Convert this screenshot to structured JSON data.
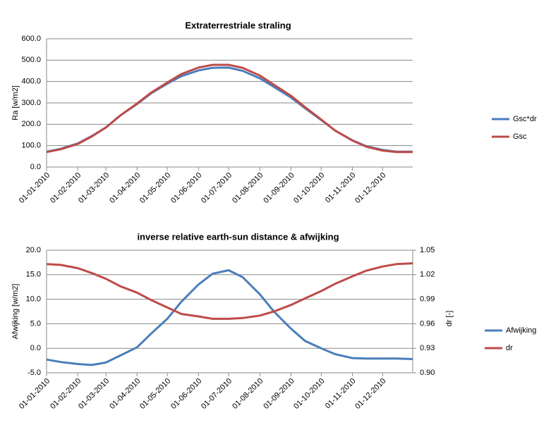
{
  "chart_data": [
    {
      "type": "line",
      "title": "Extraterrestriale straling",
      "ylabel": "Ra [w/m2]",
      "x": [
        "01-01-2010",
        "15-01-2010",
        "01-02-2010",
        "15-02-2010",
        "01-03-2010",
        "15-03-2010",
        "01-04-2010",
        "15-04-2010",
        "01-05-2010",
        "15-05-2010",
        "01-06-2010",
        "15-06-2010",
        "01-07-2010",
        "15-07-2010",
        "01-08-2010",
        "15-08-2010",
        "01-09-2010",
        "15-09-2010",
        "01-10-2010",
        "15-10-2010",
        "01-11-2010",
        "15-11-2010",
        "01-12-2010",
        "15-12-2010",
        "31-12-2010"
      ],
      "xlim": [
        "01-01-2010",
        "31-12-2010"
      ],
      "xticks": [
        "01-01-2010",
        "01-02-2010",
        "01-03-2010",
        "01-04-2010",
        "01-05-2010",
        "01-06-2010",
        "01-07-2010",
        "01-08-2010",
        "01-09-2010",
        "01-10-2010",
        "01-11-2010",
        "01-12-2010"
      ],
      "ylim": [
        0,
        600
      ],
      "yticks": [
        {
          "value": 0,
          "label": "0.0"
        },
        {
          "value": 100,
          "label": "100.0"
        },
        {
          "value": 200,
          "label": "200.0"
        },
        {
          "value": 300,
          "label": "300.0"
        },
        {
          "value": 400,
          "label": "400.0"
        },
        {
          "value": 500,
          "label": "500.0"
        },
        {
          "value": 600,
          "label": "600.0"
        }
      ],
      "grid": true,
      "legend": "right",
      "series": [
        {
          "name": "Gsc*dr",
          "color": "#4a7ebb",
          "values": [
            72,
            85,
            110,
            145,
            185,
            240,
            295,
            345,
            390,
            425,
            452,
            464,
            465,
            450,
            415,
            375,
            325,
            275,
            220,
            170,
            125,
            97,
            80,
            72,
            72
          ]
        },
        {
          "name": "Gsc",
          "color": "#be4b48",
          "values": [
            70,
            83,
            108,
            143,
            185,
            240,
            297,
            348,
            395,
            435,
            465,
            478,
            478,
            464,
            428,
            385,
            333,
            280,
            222,
            170,
            124,
            95,
            77,
            70,
            70
          ]
        }
      ]
    },
    {
      "type": "line",
      "title": "inverse relative earth-sun distance & afwijking",
      "ylabel": "Afwijking [w/m2]",
      "y2label": "dr [-]",
      "x": [
        "01-01-2010",
        "15-01-2010",
        "01-02-2010",
        "15-02-2010",
        "01-03-2010",
        "15-03-2010",
        "01-04-2010",
        "15-04-2010",
        "01-05-2010",
        "15-05-2010",
        "01-06-2010",
        "15-06-2010",
        "01-07-2010",
        "15-07-2010",
        "01-08-2010",
        "15-08-2010",
        "01-09-2010",
        "15-09-2010",
        "01-10-2010",
        "15-10-2010",
        "01-11-2010",
        "15-11-2010",
        "01-12-2010",
        "15-12-2010",
        "31-12-2010"
      ],
      "xlim": [
        "01-01-2010",
        "31-12-2010"
      ],
      "xticks": [
        "01-01-2010",
        "01-02-2010",
        "01-03-2010",
        "01-04-2010",
        "01-05-2010",
        "01-06-2010",
        "01-07-2010",
        "01-08-2010",
        "01-09-2010",
        "01-10-2010",
        "01-11-2010",
        "01-12-2010"
      ],
      "ylim": [
        -5,
        20
      ],
      "yticks": [
        {
          "value": -5,
          "label": "-5.0"
        },
        {
          "value": 0,
          "label": "0.0"
        },
        {
          "value": 5,
          "label": "5.0"
        },
        {
          "value": 10,
          "label": "10.0"
        },
        {
          "value": 15,
          "label": "15.0"
        },
        {
          "value": 20,
          "label": "20.0"
        }
      ],
      "y2lim": [
        0.9,
        1.05
      ],
      "y2ticks": [
        {
          "value": 0.9,
          "label": "0.90"
        },
        {
          "value": 0.93,
          "label": "0.93"
        },
        {
          "value": 0.96,
          "label": "0.96"
        },
        {
          "value": 0.99,
          "label": "0.99"
        },
        {
          "value": 1.02,
          "label": "1.02"
        },
        {
          "value": 1.05,
          "label": "1.05"
        }
      ],
      "grid": true,
      "legend": "right",
      "series": [
        {
          "name": "Afwijking",
          "color": "#4a7ebb",
          "values": [
            -2.3,
            -2.8,
            -3.2,
            -3.4,
            -2.9,
            -1.5,
            0.2,
            3,
            6,
            9.5,
            13,
            15.2,
            15.9,
            14.5,
            11,
            7.5,
            4,
            1.5,
            0,
            -1.2,
            -2,
            -2.1,
            -2.1,
            -2.1,
            -2.2
          ]
        },
        {
          "name": "dr",
          "color": "#be4b48",
          "axis": "y2",
          "values": [
            1.033,
            1.032,
            1.028,
            1.022,
            1.015,
            1.006,
            0.998,
            0.989,
            0.98,
            0.972,
            0.969,
            0.966,
            0.966,
            0.967,
            0.97,
            0.975,
            0.983,
            0.991,
            1,
            1.009,
            1.018,
            1.025,
            1.03,
            1.033,
            1.034
          ]
        }
      ]
    }
  ]
}
